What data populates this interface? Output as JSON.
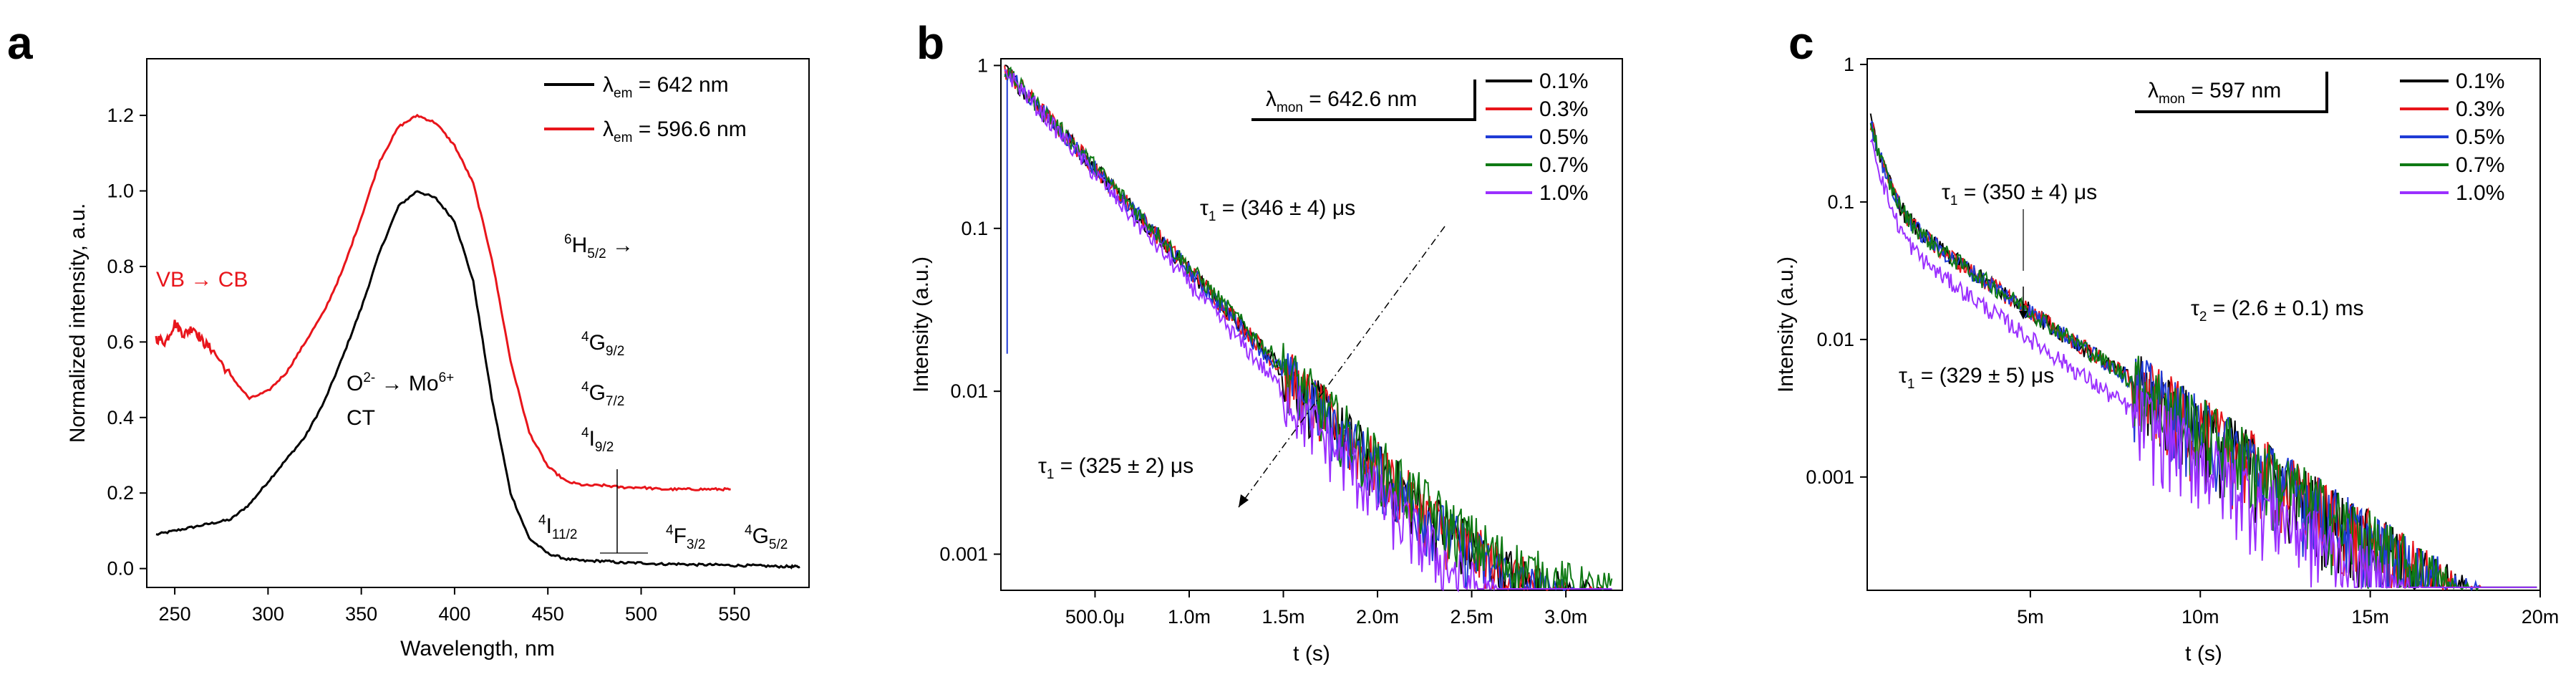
{
  "chart_data": [
    {
      "panel": "a",
      "type": "line",
      "xlabel": "Wavelength, nm",
      "ylabel": "Normalized intensity, a.u.",
      "xlim": [
        235,
        590
      ],
      "ylim": [
        -0.05,
        1.35
      ],
      "xticks": [
        "250",
        "300",
        "350",
        "400",
        "450",
        "500",
        "550"
      ],
      "yticks": [
        "0.0",
        "0.2",
        "0.4",
        "0.6",
        "0.8",
        "1.0",
        "1.2"
      ],
      "legend": [
        {
          "symbol": "λ",
          "sub": "em",
          "rest": " = 642 nm",
          "color": "#000000"
        },
        {
          "symbol": "λ",
          "sub": "em",
          "rest": " = 596.6 nm",
          "color": "#e8151b"
        }
      ],
      "annotations": {
        "vb_cb": "VB → CB",
        "ct_line1_a": "O",
        "ct_line1_sup": "2-",
        "ct_line1_b": " → Mo",
        "ct_line1_sup2": "6+",
        "ct_line2": "CT",
        "h52_sup": "6",
        "h52_main": "H",
        "h52_sub": "5/2",
        "h52_arrow": " →",
        "g92_sup": "4",
        "g92_main": "G",
        "g92_sub": "9/2",
        "g72_sup": "4",
        "g72_main": "G",
        "g72_sub": "7/2",
        "i92_sup": "4",
        "i92_main": "I",
        "i92_sub": "9/2",
        "i112_sup": "4",
        "i112_main": "I",
        "i112_sub": "11/2",
        "f32_sup": "4",
        "f32_main": "F",
        "f32_sub": "3/2",
        "g52_sup": "4",
        "g52_main": "G",
        "g52_sub": "5/2"
      },
      "series": [
        {
          "name": "λem = 642 nm",
          "color": "#000000",
          "x": [
            240,
            250,
            260,
            270,
            280,
            290,
            300,
            310,
            320,
            330,
            340,
            350,
            360,
            370,
            380,
            390,
            400,
            410,
            420,
            430,
            440,
            450,
            460,
            470,
            480,
            490,
            500,
            510,
            520,
            530,
            540,
            550,
            560,
            570,
            580,
            585
          ],
          "y": [
            0.09,
            0.1,
            0.11,
            0.12,
            0.13,
            0.17,
            0.23,
            0.29,
            0.35,
            0.44,
            0.56,
            0.69,
            0.84,
            0.96,
            1.0,
            0.98,
            0.92,
            0.76,
            0.45,
            0.2,
            0.08,
            0.04,
            0.025,
            0.02,
            0.02,
            0.015,
            0.015,
            0.012,
            0.012,
            0.01,
            0.01,
            0.008,
            0.008,
            0.006,
            0.005,
            0.005
          ]
        },
        {
          "name": "λem = 596.6 nm",
          "color": "#e8151b",
          "x": [
            240,
            245,
            250,
            255,
            260,
            265,
            270,
            280,
            290,
            300,
            310,
            320,
            330,
            340,
            350,
            360,
            370,
            380,
            390,
            400,
            410,
            420,
            430,
            440,
            450,
            460,
            470,
            480,
            490,
            500,
            510,
            520,
            530,
            540,
            548
          ],
          "y": [
            0.61,
            0.6,
            0.65,
            0.62,
            0.64,
            0.6,
            0.58,
            0.51,
            0.45,
            0.47,
            0.52,
            0.6,
            0.68,
            0.79,
            0.93,
            1.08,
            1.17,
            1.2,
            1.18,
            1.12,
            1.02,
            0.82,
            0.55,
            0.36,
            0.27,
            0.23,
            0.22,
            0.22,
            0.215,
            0.215,
            0.21,
            0.21,
            0.21,
            0.21,
            0.21
          ]
        }
      ]
    },
    {
      "panel": "b",
      "type": "line",
      "scale": "log",
      "xlabel": "t (s)",
      "ylabel": "Intensity (a.u.)",
      "xlim": [
        0.0002,
        3.3
      ],
      "ylim": [
        0.0006,
        1.1
      ],
      "xticks": [
        "500.0μ",
        "1.0m",
        "1.5m",
        "2.0m",
        "2.5m",
        "3.0m"
      ],
      "yticks": [
        "1",
        "0.1",
        "0.01",
        "0.001"
      ],
      "box_label": {
        "symbol": "λ",
        "sub": "mon",
        "rest": " = 642.6 nm"
      },
      "legend": [
        "0.1%",
        "0.3%",
        "0.5%",
        "0.7%",
        "1.0%"
      ],
      "colors": [
        "#000000",
        "#e8151b",
        "#1f3bd6",
        "#0f7a14",
        "#9b30ff"
      ],
      "annotations": {
        "tau_top_symbol": "τ",
        "tau_top_sub": "1",
        "tau_top_rest": " = (346 ± 4) μs",
        "tau_bot_symbol": "τ",
        "tau_bot_sub": "1",
        "tau_bot_rest": " = (325 ± 2) μs"
      },
      "series": [
        {
          "name": "0.1%",
          "tau_ms": 0.346,
          "noise_floor": 0.0018
        },
        {
          "name": "0.3%",
          "tau_ms": 0.346,
          "noise_floor": 0.0017
        },
        {
          "name": "0.5%",
          "tau_ms": 0.344,
          "noise_floor": 0.0016
        },
        {
          "name": "0.7%",
          "tau_ms": 0.35,
          "noise_floor": 0.0022
        },
        {
          "name": "1.0%",
          "tau_ms": 0.325,
          "noise_floor": 0.0009
        }
      ]
    },
    {
      "panel": "c",
      "type": "line",
      "scale": "log",
      "xlabel": "t (s)",
      "ylabel": "Intensity (a.u.)",
      "xlim": [
        0.2,
        20
      ],
      "ylim": [
        0.00015,
        1.1
      ],
      "xticks": [
        "5m",
        "10m",
        "15m",
        "20m"
      ],
      "yticks": [
        "1",
        "0.1",
        "0.01",
        "0.001"
      ],
      "box_label": {
        "symbol": "λ",
        "sub": "mon",
        "rest": " = 597 nm"
      },
      "legend": [
        "0.1%",
        "0.3%",
        "0.5%",
        "0.7%",
        "1.0%"
      ],
      "colors": [
        "#000000",
        "#e8151b",
        "#1f3bd6",
        "#0f7a14",
        "#9b30ff"
      ],
      "annotations": {
        "tau1_top_symbol": "τ",
        "tau1_top_sub": "1",
        "tau1_top_rest": " = (350 ± 4) μs",
        "tau2_symbol": "τ",
        "tau2_sub": "2",
        "tau2_rest": " = (2.6 ± 0.1) ms",
        "tau1_bot_symbol": "τ",
        "tau1_bot_sub": "1",
        "tau1_bot_rest": " = (329 ± 5) μs"
      },
      "series": [
        {
          "name": "0.1%",
          "tau1_ms": 0.35,
          "tau2_ms": 2.6,
          "noise_floor": 0.0006
        },
        {
          "name": "0.3%",
          "tau1_ms": 0.35,
          "tau2_ms": 2.6,
          "noise_floor": 0.0006
        },
        {
          "name": "0.5%",
          "tau1_ms": 0.35,
          "tau2_ms": 2.6,
          "noise_floor": 0.0006
        },
        {
          "name": "0.7%",
          "tau1_ms": 0.35,
          "tau2_ms": 2.6,
          "noise_floor": 0.0008
        },
        {
          "name": "1.0%",
          "tau1_ms": 0.329,
          "tau2_ms": 2.5,
          "noise_floor": 0.0004
        }
      ]
    }
  ],
  "panel_labels": [
    "a",
    "b",
    "c"
  ]
}
